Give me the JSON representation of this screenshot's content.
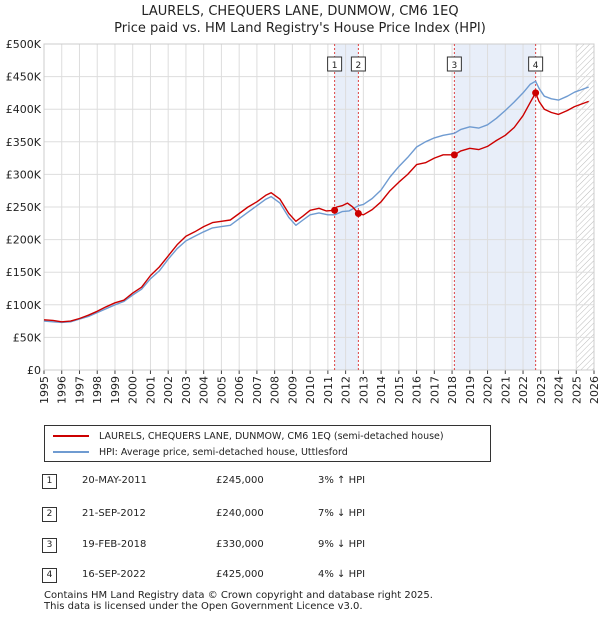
{
  "chart_data": {
    "type": "line",
    "title": "LAURELS, CHEQUERS LANE, DUNMOW, CM6 1EQ",
    "subtitle": "Price paid vs. HM Land Registry's House Price Index (HPI)",
    "xlim": [
      1995,
      2026
    ],
    "ylim": [
      0,
      500000
    ],
    "x_ticks": [
      "1995",
      "1996",
      "1997",
      "1998",
      "1999",
      "2000",
      "2001",
      "2002",
      "2003",
      "2004",
      "2005",
      "2006",
      "2007",
      "2008",
      "2009",
      "2010",
      "2011",
      "2012",
      "2013",
      "2014",
      "2015",
      "2016",
      "2017",
      "2018",
      "2019",
      "2020",
      "2021",
      "2022",
      "2023",
      "2024",
      "2025",
      "2026"
    ],
    "y_ticks": [
      {
        "value": 0,
        "label": "£0"
      },
      {
        "value": 50000,
        "label": "£50K"
      },
      {
        "value": 100000,
        "label": "£100K"
      },
      {
        "value": 150000,
        "label": "£150K"
      },
      {
        "value": 200000,
        "label": "£200K"
      },
      {
        "value": 250000,
        "label": "£250K"
      },
      {
        "value": 300000,
        "label": "£300K"
      },
      {
        "value": 350000,
        "label": "£350K"
      },
      {
        "value": 400000,
        "label": "£400K"
      },
      {
        "value": 450000,
        "label": "£450K"
      },
      {
        "value": 500000,
        "label": "£500K"
      }
    ],
    "forecast_from": 2025.0,
    "series": [
      {
        "name": "LAURELS, CHEQUERS LANE, DUNMOW, CM6 1EQ (semi-detached house)",
        "color": "#cc0000",
        "points": [
          [
            1995.0,
            77000
          ],
          [
            1995.5,
            76000
          ],
          [
            1996.0,
            74000
          ],
          [
            1996.5,
            75000
          ],
          [
            1997.0,
            79000
          ],
          [
            1997.5,
            84000
          ],
          [
            1998.0,
            90000
          ],
          [
            1998.5,
            97000
          ],
          [
            1999.0,
            103000
          ],
          [
            1999.5,
            107000
          ],
          [
            2000.0,
            118000
          ],
          [
            2000.5,
            127000
          ],
          [
            2001.0,
            145000
          ],
          [
            2001.5,
            158000
          ],
          [
            2002.0,
            175000
          ],
          [
            2002.5,
            192000
          ],
          [
            2003.0,
            205000
          ],
          [
            2003.5,
            212000
          ],
          [
            2004.0,
            220000
          ],
          [
            2004.5,
            226000
          ],
          [
            2005.0,
            228000
          ],
          [
            2005.5,
            230000
          ],
          [
            2006.0,
            240000
          ],
          [
            2006.5,
            250000
          ],
          [
            2007.0,
            258000
          ],
          [
            2007.5,
            268000
          ],
          [
            2007.8,
            272000
          ],
          [
            2008.3,
            262000
          ],
          [
            2008.8,
            240000
          ],
          [
            2009.2,
            228000
          ],
          [
            2009.6,
            236000
          ],
          [
            2010.0,
            245000
          ],
          [
            2010.5,
            248000
          ],
          [
            2010.9,
            244000
          ],
          [
            2011.38,
            245000
          ],
          [
            2011.5,
            250000
          ],
          [
            2011.8,
            252000
          ],
          [
            2012.1,
            256000
          ],
          [
            2012.4,
            250000
          ],
          [
            2012.72,
            240000
          ],
          [
            2013.0,
            238000
          ],
          [
            2013.5,
            246000
          ],
          [
            2014.0,
            258000
          ],
          [
            2014.5,
            275000
          ],
          [
            2015.0,
            288000
          ],
          [
            2015.5,
            300000
          ],
          [
            2016.0,
            315000
          ],
          [
            2016.5,
            318000
          ],
          [
            2017.0,
            325000
          ],
          [
            2017.5,
            330000
          ],
          [
            2018.13,
            330000
          ],
          [
            2018.5,
            336000
          ],
          [
            2019.0,
            340000
          ],
          [
            2019.5,
            338000
          ],
          [
            2020.0,
            343000
          ],
          [
            2020.5,
            352000
          ],
          [
            2021.0,
            360000
          ],
          [
            2021.5,
            372000
          ],
          [
            2022.0,
            390000
          ],
          [
            2022.4,
            410000
          ],
          [
            2022.71,
            425000
          ],
          [
            2022.9,
            412000
          ],
          [
            2023.2,
            400000
          ],
          [
            2023.6,
            395000
          ],
          [
            2024.0,
            392000
          ],
          [
            2024.5,
            398000
          ],
          [
            2024.9,
            404000
          ],
          [
            2025.3,
            408000
          ],
          [
            2025.7,
            412000
          ]
        ]
      },
      {
        "name": "HPI: Average price, semi-detached house, Uttlesford",
        "color": "#6f9bd1",
        "points": [
          [
            1995.0,
            75000
          ],
          [
            1995.5,
            74000
          ],
          [
            1996.0,
            73000
          ],
          [
            1996.5,
            74000
          ],
          [
            1997.0,
            78000
          ],
          [
            1997.5,
            82000
          ],
          [
            1998.0,
            88000
          ],
          [
            1998.5,
            94000
          ],
          [
            1999.0,
            100000
          ],
          [
            1999.5,
            105000
          ],
          [
            2000.0,
            115000
          ],
          [
            2000.5,
            124000
          ],
          [
            2001.0,
            140000
          ],
          [
            2001.5,
            152000
          ],
          [
            2002.0,
            170000
          ],
          [
            2002.5,
            186000
          ],
          [
            2003.0,
            198000
          ],
          [
            2003.5,
            205000
          ],
          [
            2004.0,
            212000
          ],
          [
            2004.5,
            218000
          ],
          [
            2005.0,
            220000
          ],
          [
            2005.5,
            222000
          ],
          [
            2006.0,
            232000
          ],
          [
            2006.5,
            242000
          ],
          [
            2007.0,
            252000
          ],
          [
            2007.5,
            262000
          ],
          [
            2007.8,
            266000
          ],
          [
            2008.3,
            256000
          ],
          [
            2008.8,
            234000
          ],
          [
            2009.2,
            222000
          ],
          [
            2009.6,
            230000
          ],
          [
            2010.0,
            238000
          ],
          [
            2010.5,
            241000
          ],
          [
            2011.0,
            238000
          ],
          [
            2011.38,
            238000
          ],
          [
            2011.8,
            243000
          ],
          [
            2012.2,
            244000
          ],
          [
            2012.72,
            252000
          ],
          [
            2013.0,
            254000
          ],
          [
            2013.5,
            263000
          ],
          [
            2014.0,
            276000
          ],
          [
            2014.5,
            296000
          ],
          [
            2015.0,
            312000
          ],
          [
            2015.5,
            326000
          ],
          [
            2016.0,
            342000
          ],
          [
            2016.5,
            350000
          ],
          [
            2017.0,
            356000
          ],
          [
            2017.5,
            360000
          ],
          [
            2018.13,
            363000
          ],
          [
            2018.5,
            369000
          ],
          [
            2019.0,
            373000
          ],
          [
            2019.5,
            371000
          ],
          [
            2020.0,
            376000
          ],
          [
            2020.5,
            386000
          ],
          [
            2021.0,
            398000
          ],
          [
            2021.5,
            411000
          ],
          [
            2022.0,
            425000
          ],
          [
            2022.4,
            438000
          ],
          [
            2022.71,
            443000
          ],
          [
            2022.9,
            432000
          ],
          [
            2023.2,
            420000
          ],
          [
            2023.6,
            416000
          ],
          [
            2024.0,
            414000
          ],
          [
            2024.5,
            420000
          ],
          [
            2024.9,
            426000
          ],
          [
            2025.3,
            430000
          ],
          [
            2025.7,
            434000
          ]
        ]
      }
    ],
    "sales": [
      {
        "num": "1",
        "x": 2011.38,
        "price": 245000
      },
      {
        "num": "2",
        "x": 2012.72,
        "price": 240000
      },
      {
        "num": "3",
        "x": 2018.13,
        "price": 330000
      },
      {
        "num": "4",
        "x": 2022.71,
        "price": 425000
      }
    ],
    "shaded_spans": [
      [
        2011.38,
        2012.72
      ],
      [
        2018.13,
        2022.71
      ]
    ]
  },
  "legend": {
    "property_label": "LAURELS, CHEQUERS LANE, DUNMOW, CM6 1EQ (semi-detached house)",
    "hpi_label": "HPI: Average price, semi-detached house, Uttlesford"
  },
  "transactions": [
    {
      "num": "1",
      "date": "20-MAY-2011",
      "price": "£245,000",
      "hpi": "3% ↑ HPI"
    },
    {
      "num": "2",
      "date": "21-SEP-2012",
      "price": "£240,000",
      "hpi": "7% ↓ HPI"
    },
    {
      "num": "3",
      "date": "19-FEB-2018",
      "price": "£330,000",
      "hpi": "9% ↓ HPI"
    },
    {
      "num": "4",
      "date": "16-SEP-2022",
      "price": "£425,000",
      "hpi": "4% ↓ HPI"
    }
  ],
  "footer": {
    "line1": "Contains HM Land Registry data © Crown copyright and database right 2025.",
    "line2": "This data is licensed under the Open Government Licence v3.0."
  }
}
